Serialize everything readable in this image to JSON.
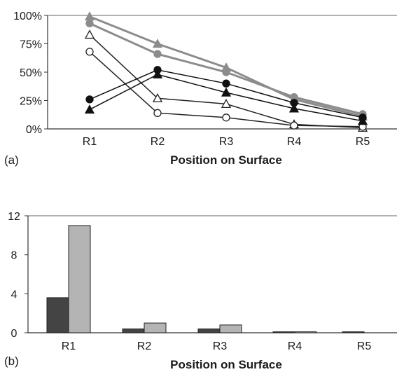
{
  "chart_data": [
    {
      "type": "line",
      "panel_label": "(a)",
      "xlabel": "Position on Surface",
      "ylabel": "",
      "categories": [
        "R1",
        "R2",
        "R3",
        "R4",
        "R5"
      ],
      "ylim": [
        0,
        100
      ],
      "yticks": [
        "0%",
        "25%",
        "50%",
        "75%",
        "100%"
      ],
      "grid": false,
      "series": [
        {
          "marker": "triangle",
          "filled": true,
          "color": "#8c8c8c",
          "values": [
            99,
            75,
            54,
            26,
            11
          ]
        },
        {
          "marker": "circle",
          "filled": true,
          "color": "#8c8c8c",
          "values": [
            93,
            66,
            50,
            28,
            13
          ]
        },
        {
          "marker": "triangle",
          "filled": false,
          "color": "#222222",
          "values": [
            83,
            27,
            22,
            4,
            1
          ]
        },
        {
          "marker": "circle",
          "filled": false,
          "color": "#222222",
          "values": [
            68,
            14,
            10,
            3,
            2
          ]
        },
        {
          "marker": "circle",
          "filled": true,
          "color": "#111111",
          "values": [
            26,
            52,
            40,
            23,
            10
          ]
        },
        {
          "marker": "triangle",
          "filled": true,
          "color": "#111111",
          "values": [
            17,
            48,
            32,
            18,
            7
          ]
        }
      ]
    },
    {
      "type": "bar",
      "panel_label": "(b)",
      "xlabel": "Position on Surface",
      "ylabel": "",
      "categories": [
        "R1",
        "R2",
        "R3",
        "R4",
        "R5"
      ],
      "ylim": [
        0,
        12
      ],
      "yticks": [
        "0",
        "4",
        "8",
        "12"
      ],
      "grid": false,
      "series": [
        {
          "color": "#444444",
          "values": [
            3.6,
            0.4,
            0.4,
            0.1,
            0.1
          ]
        },
        {
          "color": "#b4b4b4",
          "values": [
            11,
            1,
            0.8,
            0.1,
            0
          ]
        }
      ]
    }
  ]
}
